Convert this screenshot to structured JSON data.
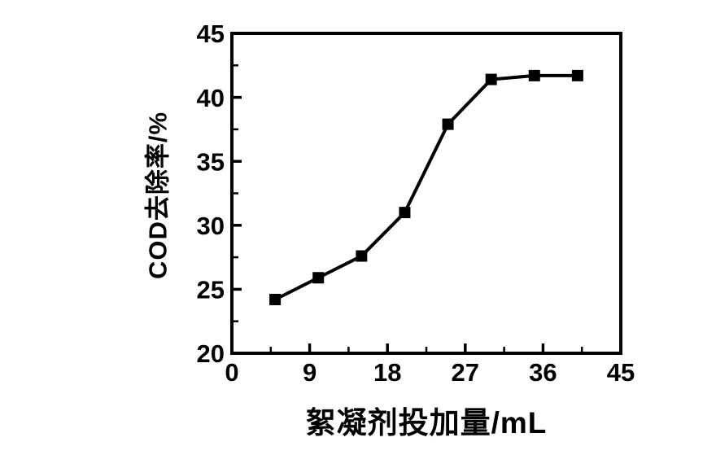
{
  "chart_data": {
    "type": "line",
    "title": "",
    "xlabel": "絮凝剂投加量/mL",
    "ylabel": "COD去除率/%",
    "x": [
      5,
      10,
      15,
      20,
      25,
      30,
      35,
      40
    ],
    "y": [
      24.2,
      25.9,
      27.6,
      31.0,
      37.9,
      41.4,
      41.7,
      41.7
    ],
    "xlim": [
      0,
      45
    ],
    "ylim": [
      20,
      45
    ],
    "x_major_ticks": [
      0,
      9,
      18,
      27,
      36,
      45
    ],
    "x_tick_labels": [
      "0",
      "9",
      "18",
      "27",
      "36",
      "45"
    ],
    "x_minor_ticks": [
      4.5,
      13.5,
      22.5,
      31.5,
      40.5
    ],
    "y_major_ticks": [
      20,
      25,
      30,
      35,
      40,
      45
    ],
    "y_tick_labels": [
      "20",
      "25",
      "30",
      "35",
      "40",
      "45"
    ],
    "y_minor_ticks": [
      22.5,
      27.5,
      32.5,
      37.5,
      42.5
    ],
    "grid": false,
    "legend": null,
    "marker": "square",
    "line_color": "#000000",
    "marker_color": "#000000",
    "axis_color": "#000000",
    "background_color": "#ffffff"
  }
}
